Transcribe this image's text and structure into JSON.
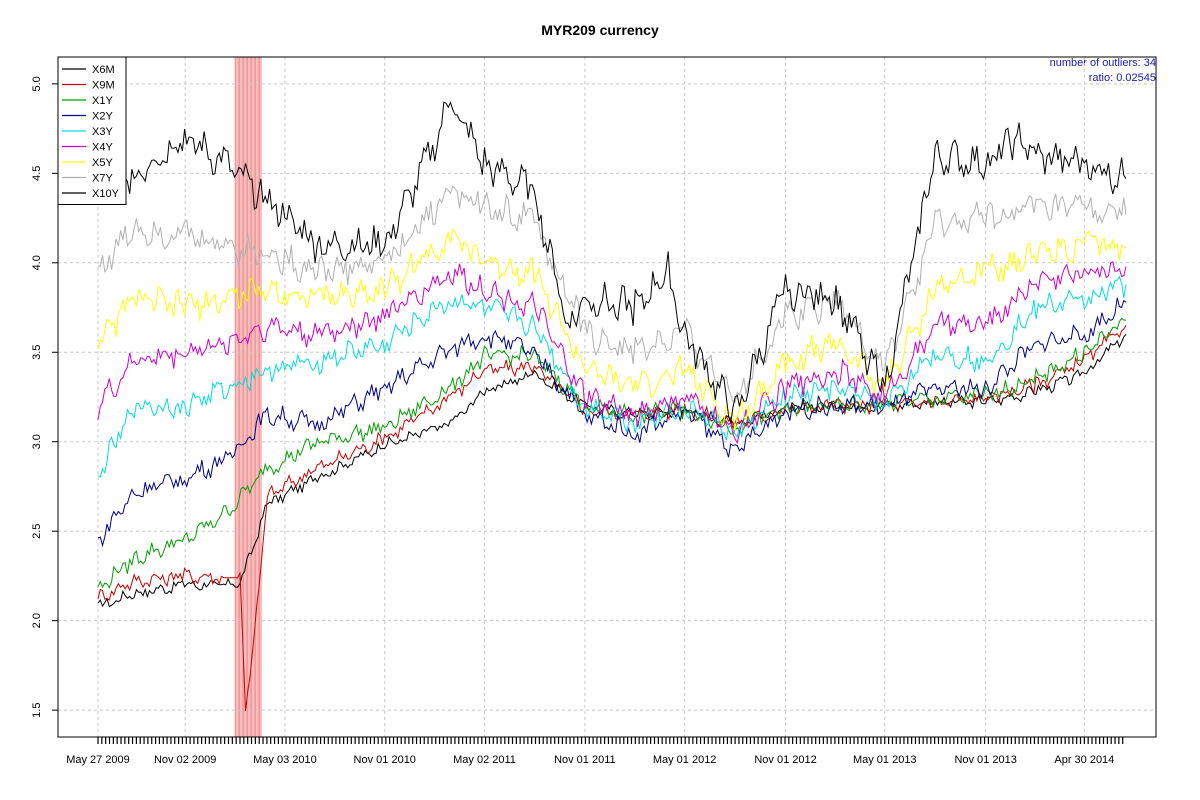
{
  "chart_data": {
    "type": "line",
    "title": "MYR209 currency",
    "xlabel": "",
    "ylabel": "",
    "ylim": [
      1.35,
      5.15
    ],
    "y_ticks": [
      1.5,
      2.0,
      2.5,
      3.0,
      3.5,
      4.0,
      4.5,
      5.0
    ],
    "y_tick_labels": [
      "1.5",
      "2.0",
      "2.5",
      "3.0",
      "3.5",
      "4.0",
      "4.5",
      "5.0"
    ],
    "x_ticks": [
      "2009-05-27",
      "2009-11-02",
      "2010-05-03",
      "2010-11-01",
      "2011-05-02",
      "2011-11-01",
      "2012-05-01",
      "2012-11-01",
      "2013-05-01",
      "2013-11-01",
      "2014-04-30"
    ],
    "x_tick_labels": [
      "May 27 2009",
      "Nov 02 2009",
      "May 03 2010",
      "Nov 01 2010",
      "May 02 2011",
      "Nov 01 2011",
      "May 01 2012",
      "Nov 01 2012",
      "May 01 2013",
      "Nov 01 2013",
      "Apr 30 2014"
    ],
    "xlim": [
      "2009-05-27",
      "2014-07-15"
    ],
    "grid": true,
    "legend_position": "top-left",
    "annotations": [
      "number of outliers:  34",
      "ratio:  0.02545"
    ],
    "outlier_band": [
      "2010-02-01",
      "2010-03-22"
    ],
    "series": [
      {
        "name": "X6M",
        "color": "#000000",
        "x": [
          "2009-05-27",
          "2009-08-01",
          "2009-11-01",
          "2010-01-15",
          "2010-02-10",
          "2010-04-01",
          "2010-07-01",
          "2010-11-01",
          "2011-03-01",
          "2011-05-02",
          "2011-08-01",
          "2011-11-01",
          "2012-02-01",
          "2012-05-01",
          "2012-08-01",
          "2012-11-01",
          "2013-02-01",
          "2013-05-01",
          "2013-08-01",
          "2013-11-01",
          "2014-02-01",
          "2014-04-30",
          "2014-07-15"
        ],
        "values": [
          2.08,
          2.15,
          2.2,
          2.2,
          2.2,
          2.65,
          2.8,
          2.98,
          3.1,
          3.28,
          3.38,
          3.2,
          3.15,
          3.18,
          3.1,
          3.18,
          3.2,
          3.2,
          3.22,
          3.22,
          3.28,
          3.38,
          3.6
        ]
      },
      {
        "name": "X9M",
        "color": "#cc0000",
        "x": [
          "2009-05-27",
          "2009-08-01",
          "2009-11-01",
          "2010-01-15",
          "2010-02-10",
          "2010-02-20",
          "2010-03-05",
          "2010-04-01",
          "2010-07-01",
          "2010-11-01",
          "2011-03-01",
          "2011-05-02",
          "2011-08-01",
          "2011-11-01",
          "2012-02-01",
          "2012-05-01",
          "2012-08-01",
          "2012-11-01",
          "2013-02-01",
          "2013-05-01",
          "2013-08-01",
          "2013-11-01",
          "2014-02-01",
          "2014-04-30",
          "2014-07-15"
        ],
        "values": [
          2.13,
          2.22,
          2.25,
          2.24,
          2.24,
          1.5,
          1.8,
          2.7,
          2.85,
          3.02,
          3.25,
          3.4,
          3.42,
          3.18,
          3.15,
          3.18,
          3.1,
          3.18,
          3.2,
          3.2,
          3.22,
          3.24,
          3.32,
          3.45,
          3.65
        ]
      },
      {
        "name": "X1Y",
        "color": "#00a000",
        "x": [
          "2009-05-27",
          "2009-08-01",
          "2009-11-01",
          "2010-01-15",
          "2010-04-01",
          "2010-07-01",
          "2010-11-01",
          "2011-03-01",
          "2011-05-02",
          "2011-08-01",
          "2011-11-01",
          "2012-02-01",
          "2012-05-01",
          "2012-08-01",
          "2012-11-01",
          "2013-02-01",
          "2013-05-01",
          "2013-08-01",
          "2013-11-01",
          "2014-02-01",
          "2014-04-30",
          "2014-07-15"
        ],
        "values": [
          2.18,
          2.35,
          2.45,
          2.6,
          2.85,
          3.0,
          3.08,
          3.3,
          3.48,
          3.48,
          3.2,
          3.15,
          3.18,
          3.08,
          3.18,
          3.2,
          3.22,
          3.24,
          3.26,
          3.35,
          3.5,
          3.68
        ]
      },
      {
        "name": "X2Y",
        "color": "#00008b",
        "x": [
          "2009-05-27",
          "2009-08-01",
          "2009-11-01",
          "2010-01-15",
          "2010-04-01",
          "2010-07-01",
          "2010-11-01",
          "2011-03-01",
          "2011-05-02",
          "2011-08-01",
          "2011-11-01",
          "2012-02-01",
          "2012-05-01",
          "2012-08-01",
          "2012-11-01",
          "2013-02-01",
          "2013-05-01",
          "2013-08-01",
          "2013-11-01",
          "2014-02-01",
          "2014-04-30",
          "2014-07-15"
        ],
        "values": [
          2.45,
          2.72,
          2.8,
          2.9,
          3.15,
          3.1,
          3.3,
          3.52,
          3.6,
          3.5,
          3.15,
          3.05,
          3.18,
          2.95,
          3.18,
          3.2,
          3.2,
          3.3,
          3.3,
          3.55,
          3.6,
          3.78
        ]
      },
      {
        "name": "X3Y",
        "color": "#00dddd",
        "x": [
          "2009-05-27",
          "2009-08-01",
          "2009-11-01",
          "2010-01-15",
          "2010-04-01",
          "2010-07-01",
          "2010-11-01",
          "2011-03-01",
          "2011-05-02",
          "2011-08-01",
          "2011-11-01",
          "2012-02-01",
          "2012-05-01",
          "2012-08-01",
          "2012-11-01",
          "2013-02-01",
          "2013-05-01",
          "2013-08-01",
          "2013-11-01",
          "2014-02-01",
          "2014-04-30",
          "2014-07-15"
        ],
        "values": [
          2.8,
          3.2,
          3.2,
          3.3,
          3.4,
          3.45,
          3.55,
          3.8,
          3.75,
          3.65,
          3.2,
          3.12,
          3.2,
          3.05,
          3.25,
          3.3,
          3.22,
          3.5,
          3.45,
          3.75,
          3.8,
          3.88
        ]
      },
      {
        "name": "X4Y",
        "color": "#cc00cc",
        "x": [
          "2009-05-27",
          "2009-08-01",
          "2009-11-01",
          "2010-01-15",
          "2010-04-01",
          "2010-07-01",
          "2010-11-01",
          "2011-03-01",
          "2011-05-02",
          "2011-08-01",
          "2011-11-01",
          "2012-02-01",
          "2012-05-01",
          "2012-08-01",
          "2012-11-01",
          "2013-02-01",
          "2013-05-01",
          "2013-08-01",
          "2013-11-01",
          "2014-02-01",
          "2014-04-30",
          "2014-07-15"
        ],
        "values": [
          3.2,
          3.45,
          3.5,
          3.55,
          3.65,
          3.6,
          3.7,
          3.95,
          3.85,
          3.75,
          3.25,
          3.15,
          3.25,
          3.05,
          3.3,
          3.4,
          3.25,
          3.65,
          3.65,
          3.9,
          3.95,
          3.98
        ]
      },
      {
        "name": "X5Y",
        "color": "#ffff00",
        "x": [
          "2009-05-27",
          "2009-08-01",
          "2009-11-01",
          "2010-01-15",
          "2010-04-01",
          "2010-07-01",
          "2010-11-01",
          "2011-03-01",
          "2011-05-02",
          "2011-08-01",
          "2011-11-01",
          "2012-02-01",
          "2012-05-01",
          "2012-08-01",
          "2012-11-01",
          "2013-02-01",
          "2013-05-01",
          "2013-08-01",
          "2013-11-01",
          "2014-02-01",
          "2014-04-30",
          "2014-07-15"
        ],
        "values": [
          3.55,
          3.8,
          3.75,
          3.8,
          3.85,
          3.8,
          3.85,
          4.15,
          4.0,
          3.95,
          3.4,
          3.3,
          3.4,
          3.1,
          3.45,
          3.55,
          3.3,
          3.85,
          3.95,
          4.05,
          4.1,
          4.08
        ]
      },
      {
        "name": "X7Y",
        "color": "#b0b0b0",
        "x": [
          "2009-05-27",
          "2009-08-01",
          "2009-11-01",
          "2010-01-15",
          "2010-04-01",
          "2010-07-01",
          "2010-11-01",
          "2011-03-01",
          "2011-05-02",
          "2011-08-01",
          "2011-11-01",
          "2012-02-01",
          "2012-05-01",
          "2012-08-01",
          "2012-11-01",
          "2013-02-01",
          "2013-05-01",
          "2013-08-01",
          "2013-11-01",
          "2014-02-01",
          "2014-04-30",
          "2014-07-15"
        ],
        "values": [
          3.95,
          4.2,
          4.15,
          4.1,
          4.05,
          3.95,
          4.0,
          4.4,
          4.3,
          4.25,
          3.6,
          3.5,
          3.6,
          3.25,
          3.7,
          3.8,
          3.4,
          4.2,
          4.25,
          4.3,
          4.3,
          4.27
        ]
      },
      {
        "name": "X10Y",
        "color": "#000000",
        "x": [
          "2009-05-27",
          "2009-08-01",
          "2009-11-01",
          "2010-01-15",
          "2010-04-01",
          "2010-07-01",
          "2010-11-01",
          "2011-01-15",
          "2011-03-01",
          "2011-05-02",
          "2011-08-01",
          "2011-10-01",
          "2011-11-01",
          "2012-02-01",
          "2012-04-01",
          "2012-05-01",
          "2012-08-01",
          "2012-11-01",
          "2013-02-01",
          "2013-05-01",
          "2013-08-01",
          "2013-11-01",
          "2014-01-01",
          "2014-02-01",
          "2014-04-30",
          "2014-07-15"
        ],
        "values": [
          4.4,
          4.5,
          4.7,
          4.55,
          4.35,
          4.1,
          4.1,
          4.55,
          4.9,
          4.55,
          4.4,
          3.65,
          3.8,
          3.75,
          3.95,
          3.6,
          3.15,
          3.85,
          3.8,
          3.3,
          4.6,
          4.55,
          4.7,
          4.6,
          4.55,
          4.47
        ]
      }
    ]
  }
}
